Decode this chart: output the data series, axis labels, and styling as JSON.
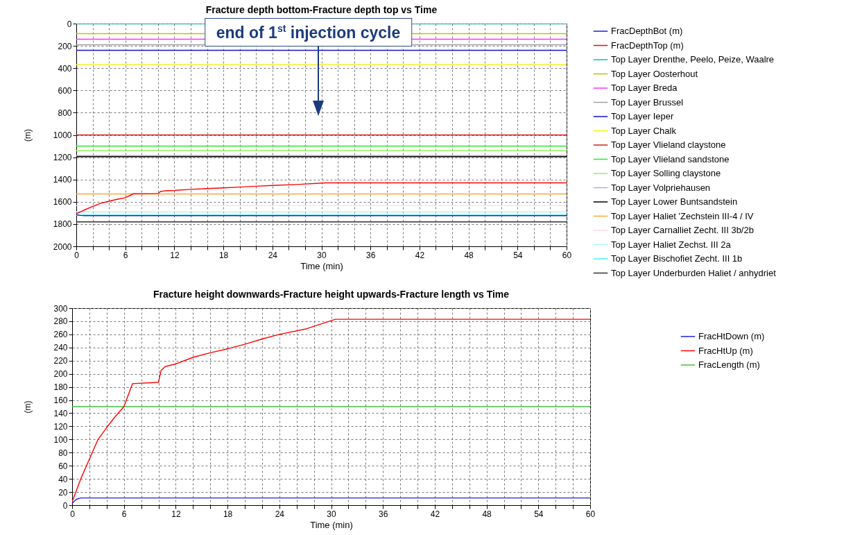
{
  "chart_data": [
    {
      "type": "line",
      "title": "Fracture depth bottom-Fracture depth top vs Time",
      "xlabel": "Time (min)",
      "ylabel": "(m)",
      "xlim": [
        0,
        60
      ],
      "ylim": [
        2000,
        0
      ],
      "xticks": [
        0,
        {
          "value": 2,
          "label": null
        },
        {
          "value": 4,
          "label": null
        },
        6,
        {
          "value": 8,
          "label": null
        },
        {
          "value": 10,
          "label": null
        },
        12,
        {
          "value": 14,
          "label": null
        },
        {
          "value": 16,
          "label": null
        },
        18,
        {
          "value": 20,
          "label": null
        },
        {
          "value": 22,
          "label": null
        },
        24,
        {
          "value": 26,
          "label": null
        },
        {
          "value": 28,
          "label": null
        },
        30,
        {
          "value": 32,
          "label": null
        },
        {
          "value": 34,
          "label": null
        },
        36,
        {
          "value": 38,
          "label": null
        },
        {
          "value": 40,
          "label": null
        },
        42,
        {
          "value": 44,
          "label": null
        },
        {
          "value": 46,
          "label": null
        },
        48,
        {
          "value": 50,
          "label": null
        },
        {
          "value": 52,
          "label": null
        },
        54,
        {
          "value": 56,
          "label": null
        },
        {
          "value": 58,
          "label": null
        },
        60
      ],
      "yticks": [
        0,
        200,
        400,
        600,
        800,
        1000,
        1200,
        1400,
        1600,
        1800,
        2000
      ],
      "grid": true,
      "legend": "right",
      "annotations": [
        "end of 1$^{st}$ injection cycle"
      ],
      "series": [
        {
          "name": "FracDepthBot (m)",
          "color": "#2020d0",
          "x": [
            0,
            0.5,
            1,
            60
          ],
          "values": [
            1716,
            1722,
            1724,
            1724
          ]
        },
        {
          "name": "FracDepthTop (m)",
          "color": "#ff0000",
          "x": [
            0,
            1,
            2,
            3,
            4,
            5,
            6,
            7,
            10,
            10.3,
            10.8,
            12,
            14,
            16,
            18,
            20,
            22,
            24,
            27,
            30.5,
            60
          ],
          "values": [
            1708,
            1673,
            1643,
            1613,
            1595,
            1578,
            1563,
            1528,
            1526,
            1508,
            1502,
            1498,
            1488,
            1481,
            1475,
            1468,
            1460,
            1453,
            1445,
            1430,
            1430
          ]
        },
        {
          "name": "Top Layer Drenthe, Peelo, Peize, Waalre",
          "color": "#00c0c0",
          "x": [
            0,
            60
          ],
          "values": [
            0,
            0
          ]
        },
        {
          "name": "Top Layer Oosterhout",
          "color": "#c0c000",
          "x": [
            0,
            60
          ],
          "values": [
            90,
            90
          ]
        },
        {
          "name": "Top Layer Breda",
          "color": "#ff30ff",
          "x": [
            0,
            60
          ],
          "values": [
            140,
            140
          ]
        },
        {
          "name": "Top Layer Brussel",
          "color": "#a0a0a0",
          "x": [
            0,
            60
          ],
          "values": [
            190,
            190
          ]
        },
        {
          "name": "Top Layer Ieper",
          "color": "#1010d0",
          "x": [
            0,
            60
          ],
          "values": [
            240,
            240
          ]
        },
        {
          "name": "Top Layer Chalk",
          "color": "#f0f000",
          "x": [
            0,
            60
          ],
          "values": [
            370,
            370
          ]
        },
        {
          "name": "Top Layer Vlieland claystone",
          "color": "#d02020",
          "x": [
            0,
            60
          ],
          "values": [
            1000,
            1000
          ]
        },
        {
          "name": "Top Layer Vlieland sandstone",
          "color": "#20f020",
          "x": [
            0,
            60
          ],
          "values": [
            1100,
            1100
          ]
        },
        {
          "name": "Top Layer Solling claystone",
          "color": "#90f060",
          "x": [
            0,
            60
          ],
          "values": [
            1140,
            1140
          ]
        },
        {
          "name": "Top Layer Volpriehausen",
          "color": "#c0a8c8",
          "x": [
            0,
            60
          ],
          "values": [
            1185,
            1185
          ]
        },
        {
          "name": "Top Layer Lower Buntsandstein",
          "color": "#000000",
          "x": [
            0,
            60
          ],
          "values": [
            1195,
            1195
          ]
        },
        {
          "name": "Top Layer Haliet 'Zechstein III-4 / IV",
          "color": "#ffa830",
          "x": [
            0,
            60
          ],
          "values": [
            1530,
            1530
          ]
        },
        {
          "name": "Top Layer Carnalliet Zecht. III 3b/2b",
          "color": "#ffd8e8",
          "x": [
            0,
            60
          ],
          "values": [
            1635,
            1635
          ]
        },
        {
          "name": "Top Layer Haliet Zechst. III 2a",
          "color": "#b0f8f0",
          "x": [
            0,
            60
          ],
          "values": [
            1690,
            1690
          ]
        },
        {
          "name": "Top Layer Bischofiet Zecht. III 1b",
          "color": "#40f0ff",
          "x": [
            0,
            60
          ],
          "values": [
            1720,
            1720
          ]
        },
        {
          "name": "Top Layer Underburden Haliet / anhydriet",
          "color": "#303030",
          "x": [
            0,
            60
          ],
          "values": [
            1780,
            1780
          ]
        }
      ]
    },
    {
      "type": "line",
      "title": "Fracture height downwards-Fracture height upwards-Fracture length vs Time",
      "xlabel": "Time (min)",
      "ylabel": "(m)",
      "xlim": [
        0,
        60
      ],
      "ylim": [
        0,
        300
      ],
      "xticks": [
        0,
        {
          "value": 2,
          "label": null
        },
        {
          "value": 4,
          "label": null
        },
        6,
        {
          "value": 8,
          "label": null
        },
        {
          "value": 10,
          "label": null
        },
        12,
        {
          "value": 14,
          "label": null
        },
        {
          "value": 16,
          "label": null
        },
        18,
        {
          "value": 20,
          "label": null
        },
        {
          "value": 22,
          "label": null
        },
        24,
        {
          "value": 26,
          "label": null
        },
        {
          "value": 28,
          "label": null
        },
        30,
        {
          "value": 32,
          "label": null
        },
        {
          "value": 34,
          "label": null
        },
        36,
        {
          "value": 38,
          "label": null
        },
        {
          "value": 40,
          "label": null
        },
        42,
        {
          "value": 44,
          "label": null
        },
        {
          "value": 46,
          "label": null
        },
        48,
        {
          "value": 50,
          "label": null
        },
        {
          "value": 52,
          "label": null
        },
        54,
        {
          "value": 56,
          "label": null
        },
        {
          "value": 58,
          "label": null
        },
        60
      ],
      "yticks": [
        0,
        20,
        40,
        60,
        80,
        100,
        120,
        140,
        160,
        180,
        200,
        220,
        240,
        260,
        280,
        300
      ],
      "grid": true,
      "legend": "right",
      "series": [
        {
          "name": "FracHtDown (m)",
          "color": "#2020e0",
          "x": [
            0,
            0.5,
            1,
            60
          ],
          "values": [
            3,
            9,
            11,
            11
          ]
        },
        {
          "name": "FracHtUp (m)",
          "color": "#ff0000",
          "x": [
            0,
            1,
            2,
            3,
            4,
            5,
            6,
            7,
            10,
            10.3,
            10.8,
            12,
            14,
            16,
            18,
            20,
            22,
            24,
            27,
            30.5,
            60
          ],
          "values": [
            5,
            40,
            70,
            100,
            118,
            135,
            150,
            185,
            187,
            205,
            211,
            215,
            225,
            232,
            238,
            245,
            253,
            260,
            268,
            283,
            283
          ]
        },
        {
          "name": "FracLength (m)",
          "color": "#40c040",
          "x": [
            0,
            60
          ],
          "values": [
            150,
            150
          ]
        }
      ]
    }
  ]
}
